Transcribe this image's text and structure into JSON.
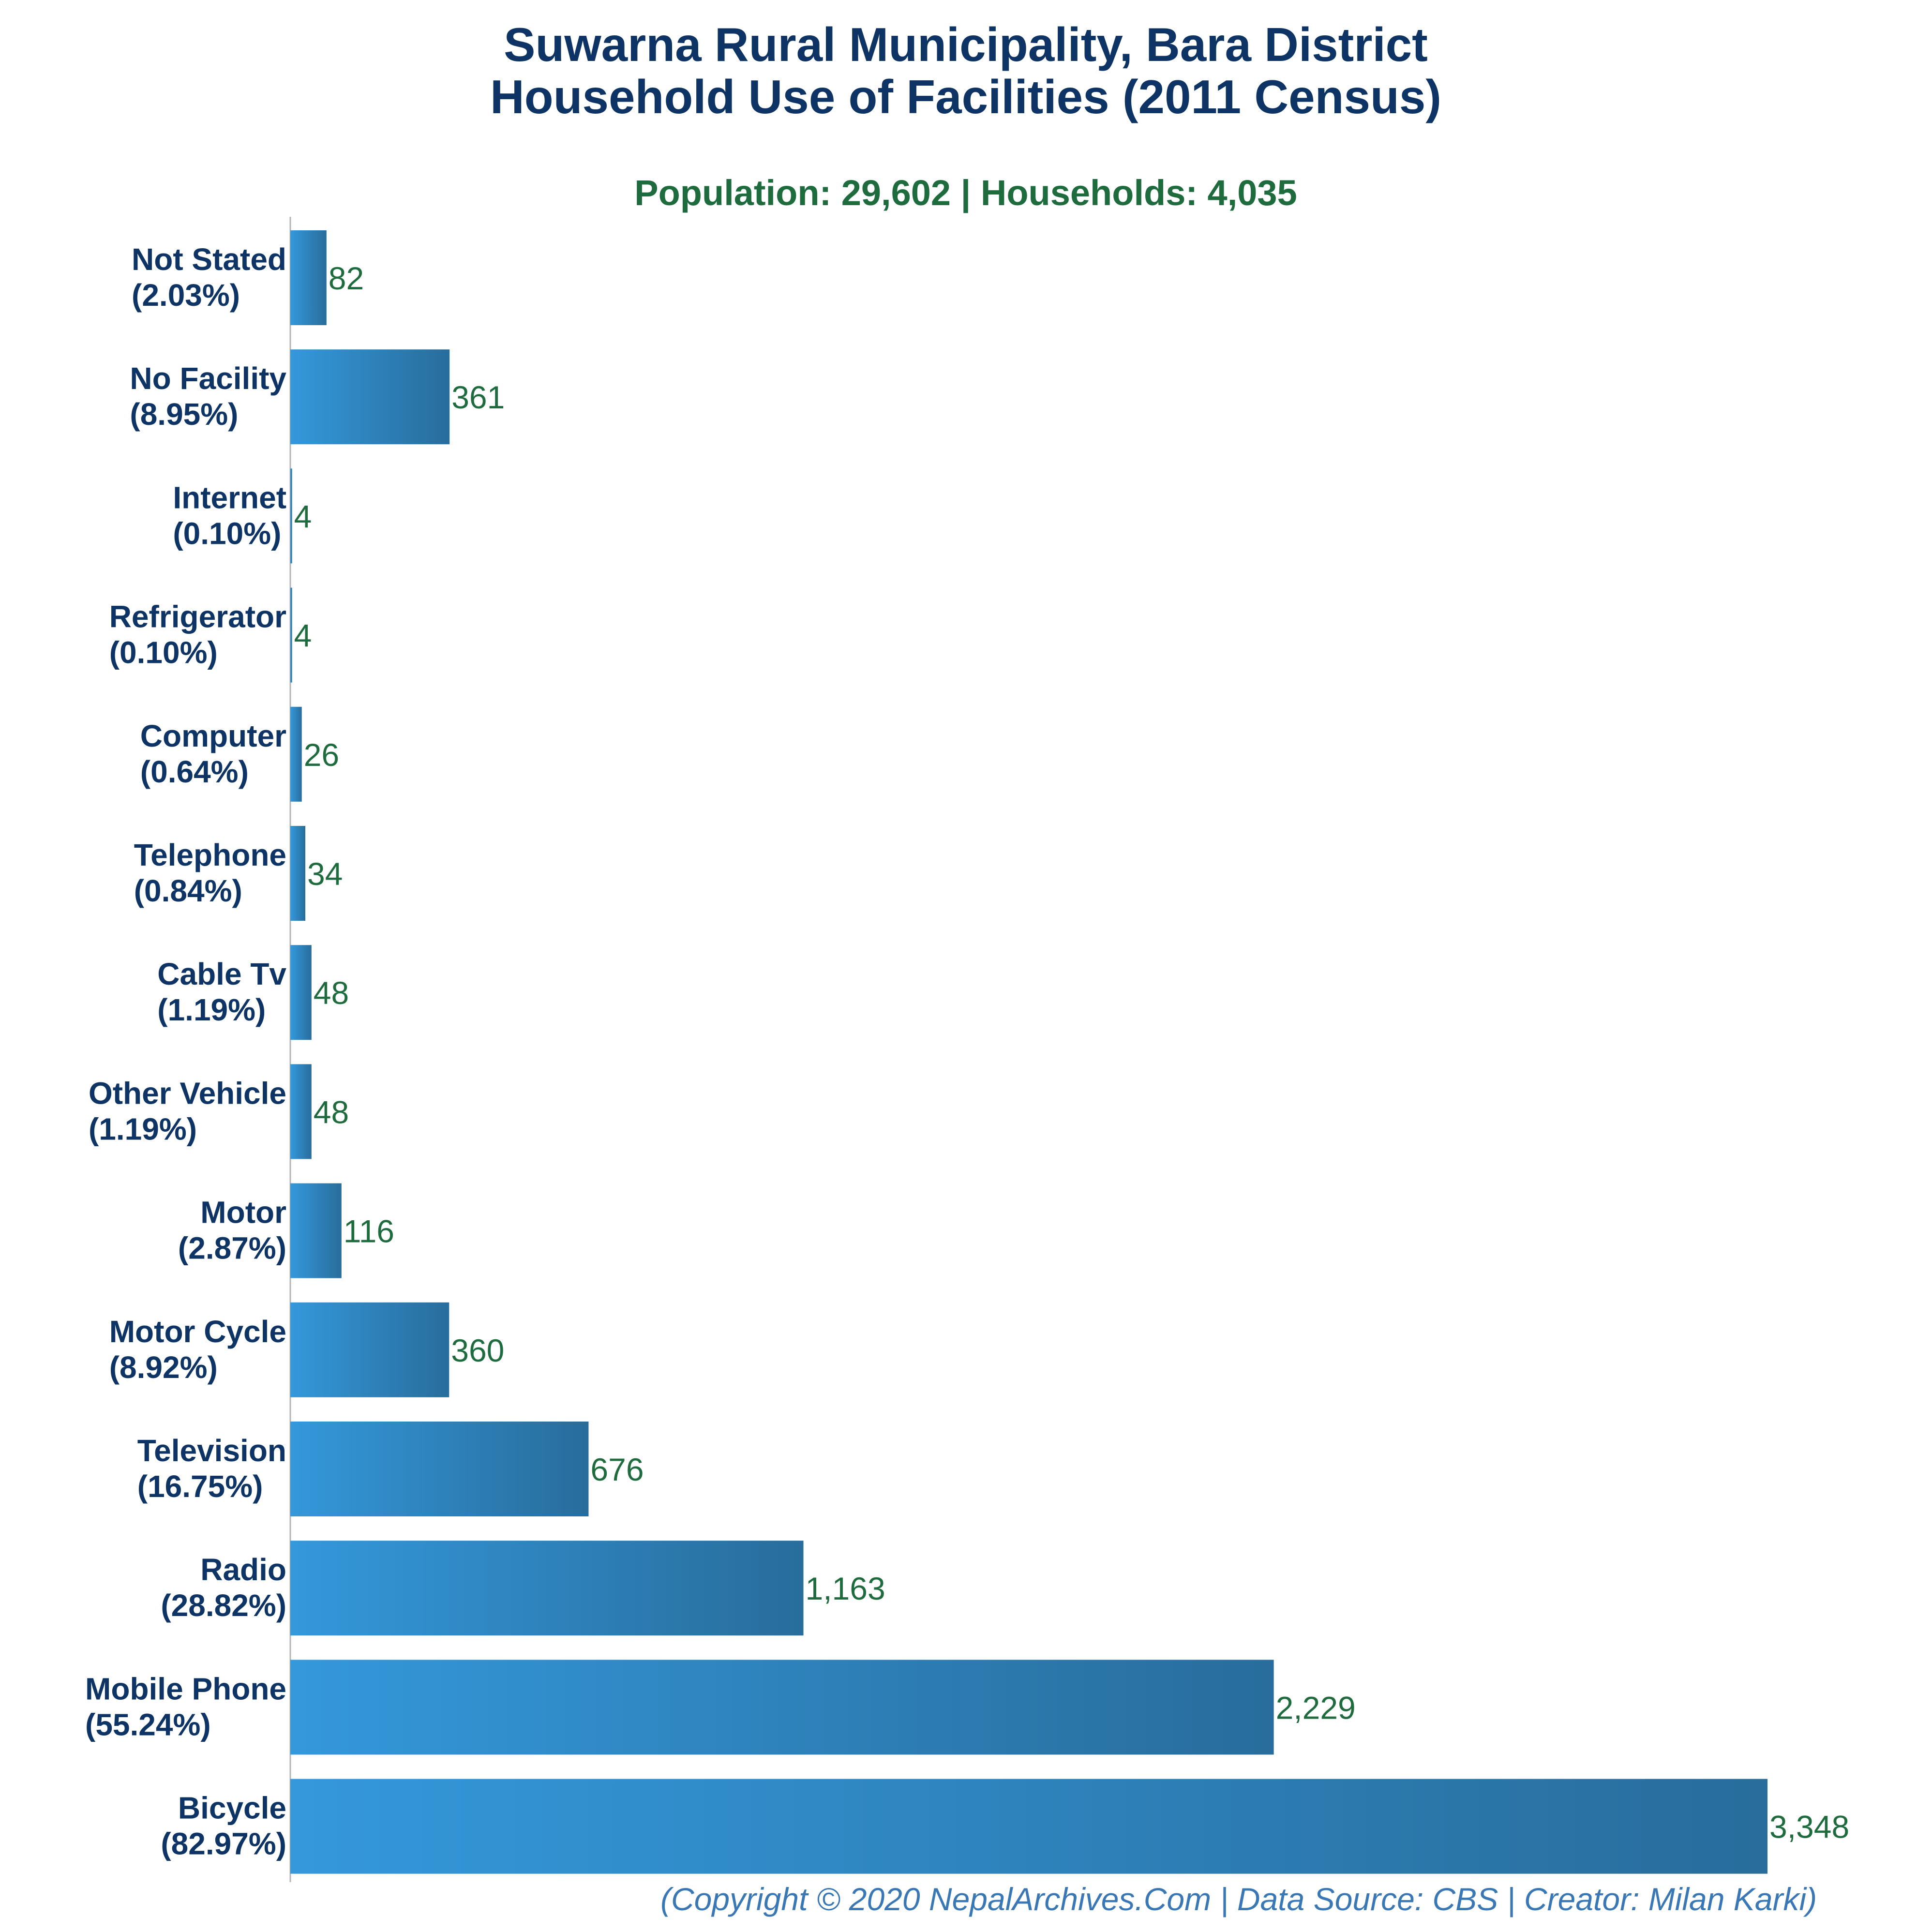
{
  "chart_data": {
    "type": "bar",
    "orientation": "horizontal",
    "title": [
      "Suwarna Rural Municipality, Bara District",
      "Household Use of Facilities (2011 Census)"
    ],
    "subtitle": "Population: 29,602 | Households: 4,035",
    "footer": "(Copyright © 2020 NepalArchives.Com | Data Source: CBS | Creator: Milan Karki)",
    "xlim": [
      0,
      3348
    ],
    "grid": false,
    "colors": {
      "bar_light": "#3498db",
      "bar_dark": "#286d9c",
      "title": "#0d3465",
      "subtitle": "#1e6b3e",
      "value_label": "#1e6b3e",
      "footer": "#3a78b5"
    },
    "bars": [
      {
        "category": "Not Stated",
        "percent": "(2.03%)",
        "value": 82,
        "value_label": "82"
      },
      {
        "category": "No Facility",
        "percent": "(8.95%)",
        "value": 361,
        "value_label": "361"
      },
      {
        "category": "Internet",
        "percent": "(0.10%)",
        "value": 4,
        "value_label": "4"
      },
      {
        "category": "Refrigerator",
        "percent": "(0.10%)",
        "value": 4,
        "value_label": "4"
      },
      {
        "category": "Computer",
        "percent": "(0.64%)",
        "value": 26,
        "value_label": "26"
      },
      {
        "category": "Telephone",
        "percent": "(0.84%)",
        "value": 34,
        "value_label": "34"
      },
      {
        "category": "Cable Tv",
        "percent": "(1.19%)",
        "value": 48,
        "value_label": "48"
      },
      {
        "category": "Other Vehicle",
        "percent": "(1.19%)",
        "value": 48,
        "value_label": "48"
      },
      {
        "category": "Motor",
        "percent": "(2.87%)",
        "value": 116,
        "value_label": "116"
      },
      {
        "category": "Motor Cycle",
        "percent": "(8.92%)",
        "value": 360,
        "value_label": "360"
      },
      {
        "category": "Television",
        "percent": "(16.75%)",
        "value": 676,
        "value_label": "676"
      },
      {
        "category": "Radio",
        "percent": "(28.82%)",
        "value": 1163,
        "value_label": "1,163"
      },
      {
        "category": "Mobile Phone",
        "percent": "(55.24%)",
        "value": 2229,
        "value_label": "2,229"
      },
      {
        "category": "Bicycle",
        "percent": "(82.97%)",
        "value": 3348,
        "value_label": "3,348"
      }
    ]
  }
}
